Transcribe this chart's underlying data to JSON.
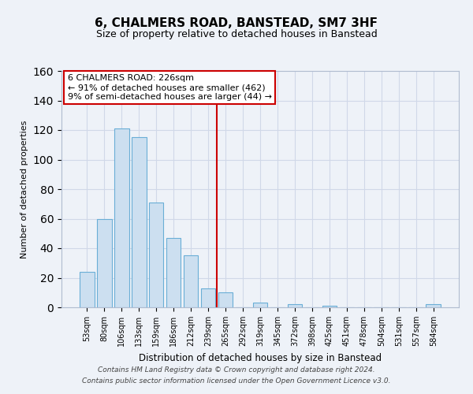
{
  "title": "6, CHALMERS ROAD, BANSTEAD, SM7 3HF",
  "subtitle": "Size of property relative to detached houses in Banstead",
  "xlabel": "Distribution of detached houses by size in Banstead",
  "ylabel": "Number of detached properties",
  "bar_labels": [
    "53sqm",
    "80sqm",
    "106sqm",
    "133sqm",
    "159sqm",
    "186sqm",
    "212sqm",
    "239sqm",
    "265sqm",
    "292sqm",
    "319sqm",
    "345sqm",
    "372sqm",
    "398sqm",
    "425sqm",
    "451sqm",
    "478sqm",
    "504sqm",
    "531sqm",
    "557sqm",
    "584sqm"
  ],
  "bar_values": [
    24,
    60,
    121,
    115,
    71,
    47,
    35,
    13,
    10,
    0,
    3,
    0,
    2,
    0,
    1,
    0,
    0,
    0,
    0,
    0,
    2
  ],
  "bar_color": "#ccdff0",
  "bar_edge_color": "#6aaed6",
  "ylim": [
    0,
    160
  ],
  "yticks": [
    0,
    20,
    40,
    60,
    80,
    100,
    120,
    140,
    160
  ],
  "vline_x": 7.5,
  "vline_color": "#cc0000",
  "annotation_title": "6 CHALMERS ROAD: 226sqm",
  "annotation_line1": "← 91% of detached houses are smaller (462)",
  "annotation_line2": "9% of semi-detached houses are larger (44) →",
  "background_color": "#eef2f8",
  "grid_color": "#d0d8e8",
  "footer_line1": "Contains HM Land Registry data © Crown copyright and database right 2024.",
  "footer_line2": "Contains public sector information licensed under the Open Government Licence v3.0."
}
